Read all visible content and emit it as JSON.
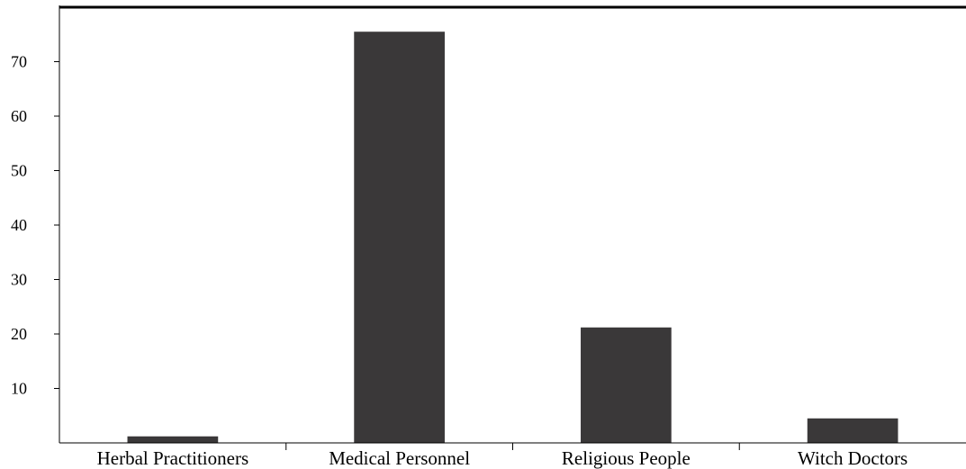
{
  "chart_data": {
    "type": "bar",
    "title": "",
    "xlabel": "",
    "ylabel": "",
    "categories": [
      "Herbal Practitioners",
      "Medical Personnel",
      "Religious People",
      "Witch Doctors"
    ],
    "values": [
      1.2,
      75.5,
      21.2,
      4.5
    ],
    "ylim": [
      0,
      80
    ],
    "yticks": [
      10,
      20,
      30,
      40,
      50,
      60,
      70
    ],
    "grid": false,
    "legend": "none",
    "bar_color": "#3a3839",
    "axis_color": "#000000"
  }
}
